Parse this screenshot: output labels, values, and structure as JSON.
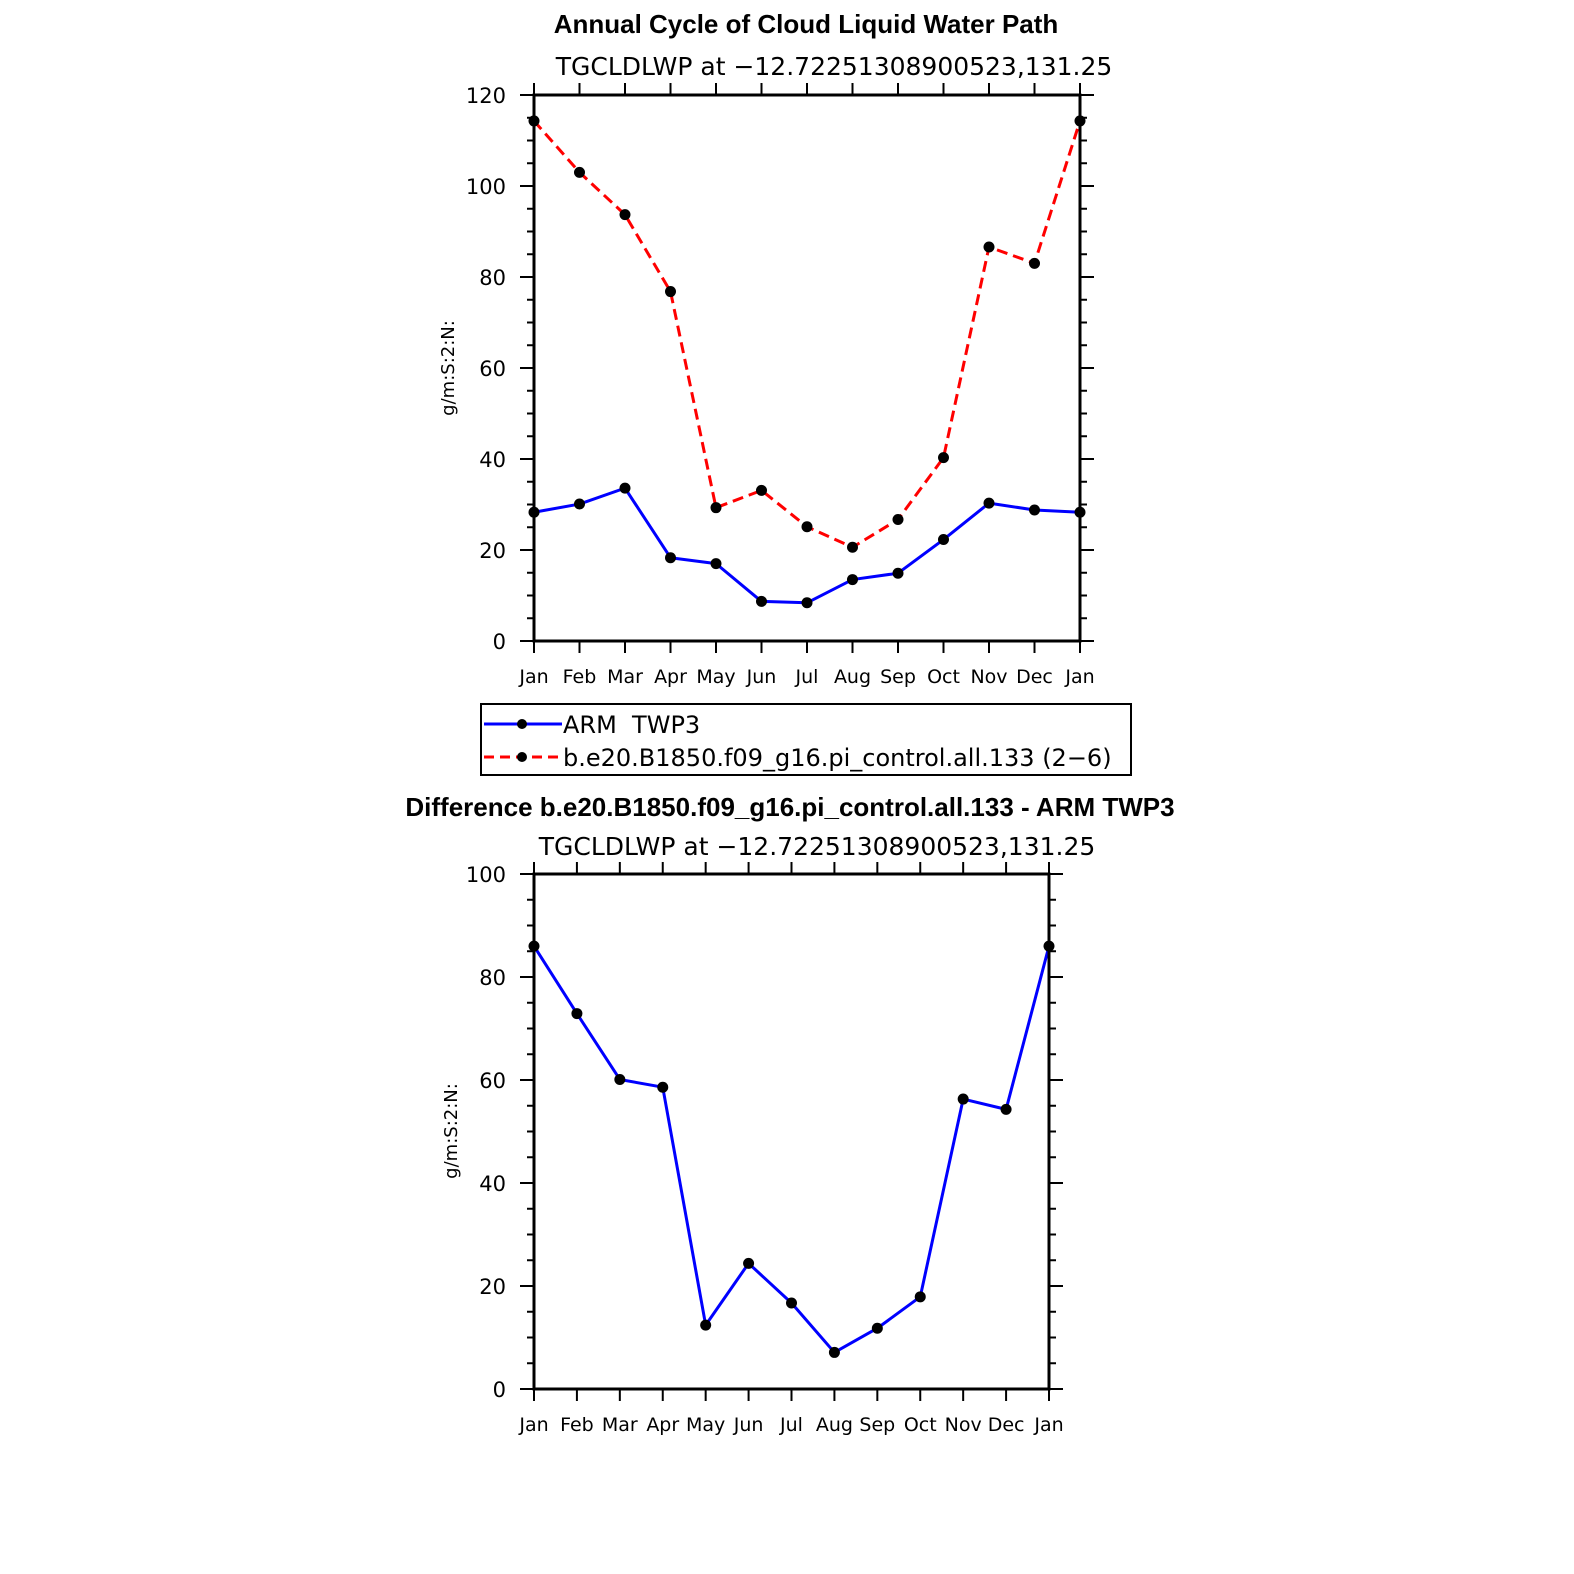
{
  "chart_data": [
    {
      "type": "line",
      "title": "Annual Cycle of Cloud Liquid Water Path",
      "subtitle": "TGCLDLWP at −12.72251308900523,131.25",
      "xlabel": "",
      "ylabel": "g/m:S:2:N:",
      "categories": [
        "Jan",
        "Feb",
        "Mar",
        "Apr",
        "May",
        "Jun",
        "Jul",
        "Aug",
        "Sep",
        "Oct",
        "Nov",
        "Dec",
        "Jan"
      ],
      "ylim": [
        0,
        120
      ],
      "yticks": [
        0,
        20,
        40,
        60,
        80,
        100,
        120
      ],
      "series": [
        {
          "name": "ARM  TWP3",
          "color": "#0000ff",
          "dash": "solid",
          "values": [
            28.3,
            30.1,
            33.6,
            18.3,
            17.0,
            8.7,
            8.4,
            13.5,
            14.9,
            22.3,
            30.3,
            28.8,
            28.3
          ]
        },
        {
          "name": "b.e20.B1850.f09_g16.pi_control.all.133 (2−6)",
          "color": "#ff0000",
          "dash": "dashed",
          "values": [
            114.3,
            103.0,
            93.7,
            76.8,
            29.3,
            33.1,
            25.1,
            20.6,
            26.7,
            40.3,
            86.6,
            83.0,
            114.3
          ]
        }
      ],
      "legend_position": "below"
    },
    {
      "type": "line",
      "title": "Difference b.e20.B1850.f09_g16.pi_control.all.133 - ARM TWP3",
      "subtitle": "TGCLDLWP at −12.72251308900523,131.25",
      "xlabel": "",
      "ylabel": "g/m:S:2:N:",
      "categories": [
        "Jan",
        "Feb",
        "Mar",
        "Apr",
        "May",
        "Jun",
        "Jul",
        "Aug",
        "Sep",
        "Oct",
        "Nov",
        "Dec",
        "Jan"
      ],
      "ylim": [
        0,
        100
      ],
      "yticks": [
        0,
        20,
        40,
        60,
        80,
        100
      ],
      "series": [
        {
          "name": "difference",
          "color": "#0000ff",
          "dash": "solid",
          "values": [
            86.0,
            72.9,
            60.1,
            58.6,
            12.4,
            24.4,
            16.7,
            7.1,
            11.8,
            17.9,
            56.3,
            54.3,
            86.0
          ]
        }
      ]
    }
  ]
}
